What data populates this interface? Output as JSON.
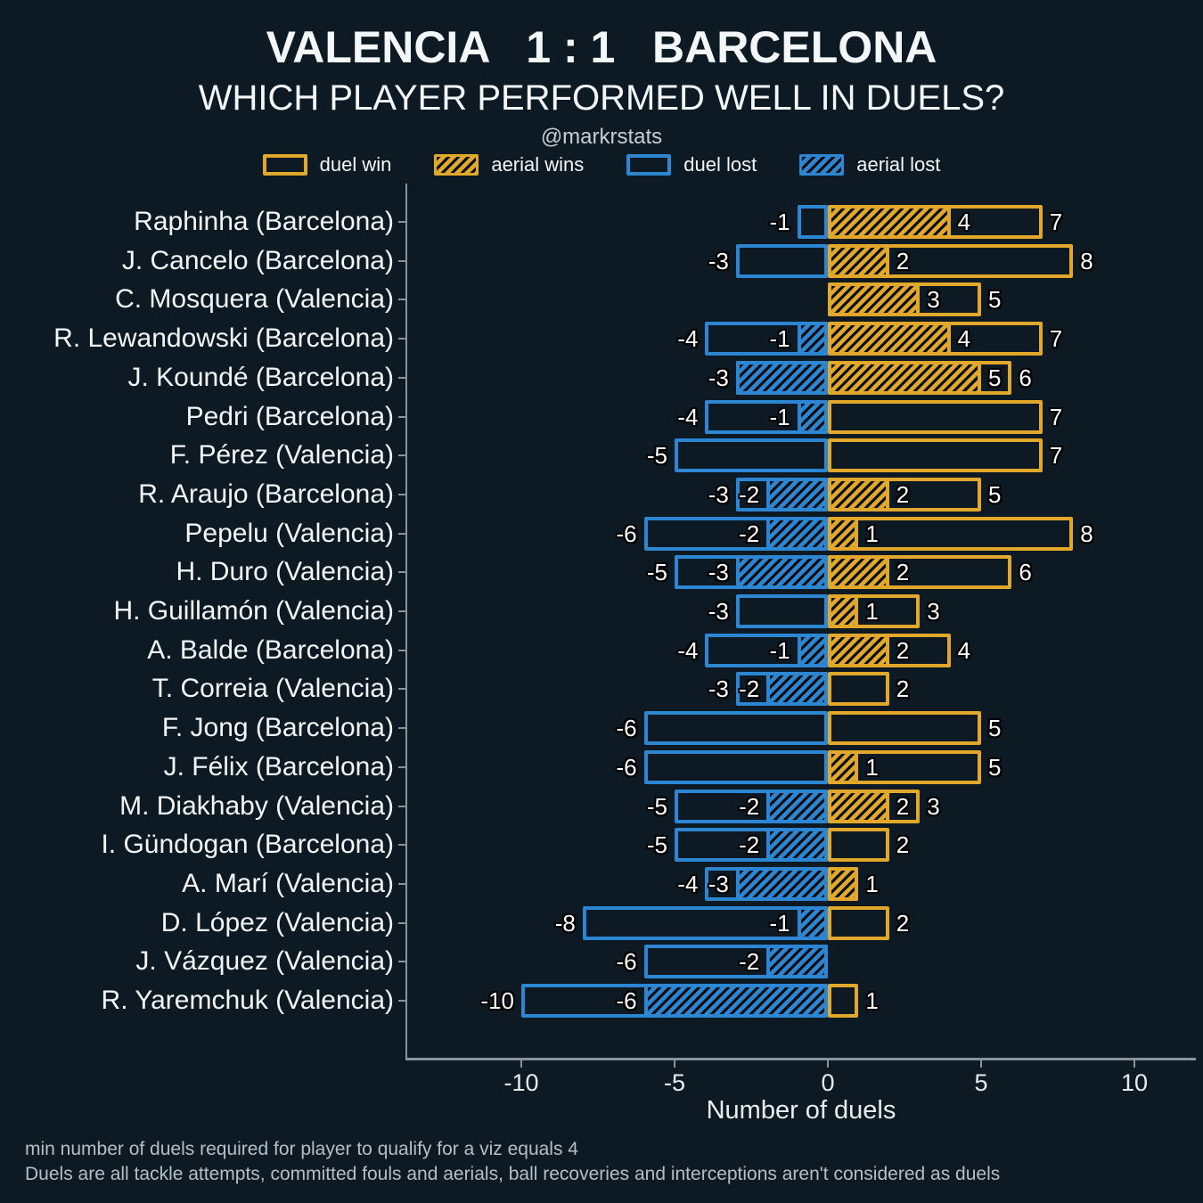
{
  "header": {
    "title": "VALENCIA   1 : 1   BARCELONA",
    "subtitle": "WHICH PLAYER PERFORMED WELL IN DUELS?",
    "credit": "@markrstats"
  },
  "legend": {
    "items": [
      {
        "label": "duel win"
      },
      {
        "label": "aerial wins"
      },
      {
        "label": "duel lost"
      },
      {
        "label": "aerial lost"
      }
    ]
  },
  "colors": {
    "gold": "#e2a82b",
    "blue": "#2c86d2",
    "background": "#0d1a24",
    "axis": "#8a949c"
  },
  "chart_data": {
    "type": "bar",
    "orientation": "horizontal-diverging",
    "xlabel": "Number of duels",
    "x_ticks": [
      -10,
      -5,
      0,
      5,
      10
    ],
    "xlim": [
      -13.7,
      12.0
    ],
    "grid": false,
    "categories": [
      "Raphinha (Barcelona)",
      "J. Cancelo (Barcelona)",
      "C. Mosquera (Valencia)",
      "R. Lewandowski (Barcelona)",
      "J. Koundé (Barcelona)",
      "Pedri (Barcelona)",
      "F. Pérez (Valencia)",
      "R. Araujo (Barcelona)",
      "Pepelu (Valencia)",
      "H. Duro (Valencia)",
      "H. Guillamón (Valencia)",
      "A. Balde (Barcelona)",
      "T. Correia (Valencia)",
      "F. Jong (Barcelona)",
      "J. Félix (Barcelona)",
      "M. Diakhaby (Valencia)",
      "I. Gündogan (Barcelona)",
      "A. Marí (Valencia)",
      "D. López (Valencia)",
      "J. Vázquez (Valencia)",
      "R. Yaremchuk (Valencia)"
    ],
    "series": [
      {
        "name": "duel win",
        "values": [
          7,
          8,
          5,
          7,
          6,
          7,
          7,
          5,
          8,
          6,
          3,
          4,
          2,
          5,
          5,
          3,
          2,
          1,
          2,
          0,
          1
        ]
      },
      {
        "name": "aerial wins",
        "values": [
          4,
          2,
          3,
          4,
          5,
          0,
          0,
          2,
          1,
          2,
          1,
          2,
          0,
          0,
          1,
          2,
          0,
          1,
          0,
          0,
          0
        ]
      },
      {
        "name": "duel lost",
        "values": [
          -1,
          -3,
          0,
          -4,
          -3,
          -4,
          -5,
          -3,
          -6,
          -5,
          -3,
          -4,
          -3,
          -6,
          -6,
          -5,
          -5,
          -4,
          -8,
          -6,
          -10
        ]
      },
      {
        "name": "aerial lost",
        "values": [
          0,
          0,
          0,
          -1,
          -3,
          -1,
          0,
          -2,
          -2,
          -3,
          0,
          -1,
          -2,
          0,
          0,
          -2,
          -2,
          -3,
          -1,
          -2,
          -6
        ]
      }
    ]
  },
  "footer": {
    "line1": "min number of duels required for player to qualify for a viz equals 4",
    "line2": "Duels are all tackle attempts, committed fouls and aerials, ball recoveries and interceptions aren't considered as duels"
  }
}
